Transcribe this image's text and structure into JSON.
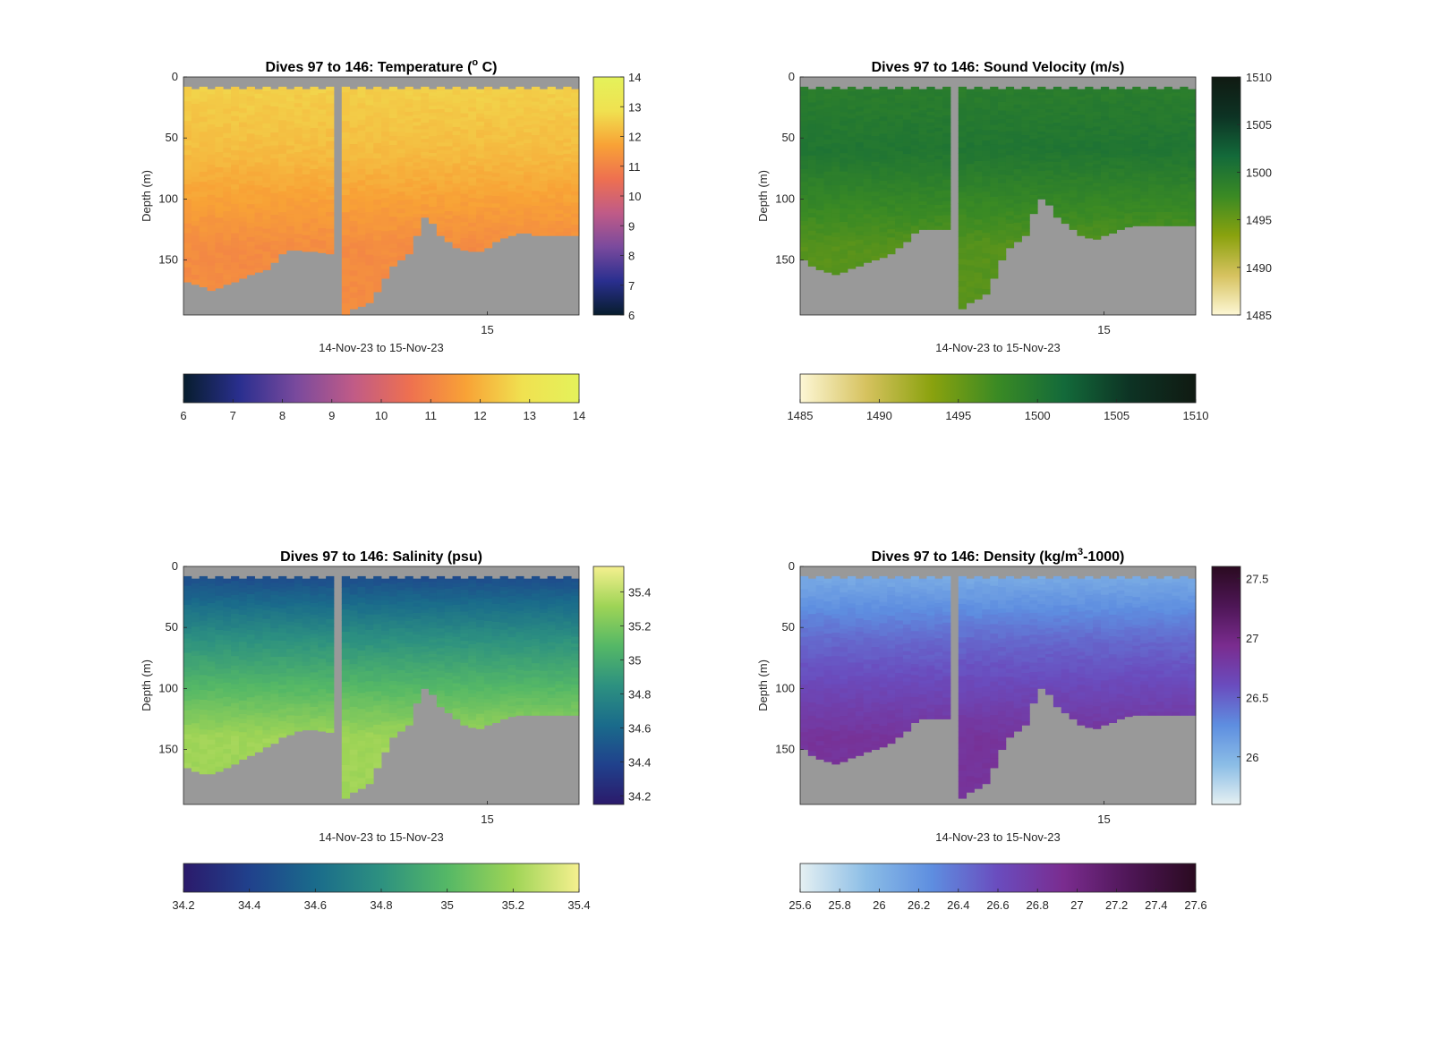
{
  "chart_data": [
    {
      "type": "heatmap",
      "title": "Dives 97 to 146: Temperature (",
      "title_sup": "o",
      "title_tail": " C)",
      "xlabel": "14-Nov-23 to 15-Nov-23",
      "ylabel": "Depth (m)",
      "x_tick_labels": [
        "15"
      ],
      "y_tick_labels": [
        "0",
        "50",
        "100",
        "150"
      ],
      "ylim": [
        0,
        195
      ],
      "colorbar": {
        "range": [
          6,
          14
        ],
        "ticks": [
          "6",
          "7",
          "8",
          "9",
          "10",
          "11",
          "12",
          "13",
          "14"
        ],
        "colors": [
          "#071d2d",
          "#2a2f8f",
          "#7a4a9d",
          "#c05b87",
          "#ee7050",
          "#f8a236",
          "#f0e150",
          "#e4f25b"
        ]
      },
      "hcolorbar_ticks": [
        "6",
        "7",
        "8",
        "9",
        "10",
        "11",
        "12",
        "13",
        "14"
      ],
      "profile": {
        "surface": 12.6,
        "mid": 12.2,
        "deep": 11.2
      },
      "dives": 50,
      "bottom_depth_m": [
        168,
        170,
        172,
        175,
        173,
        170,
        168,
        165,
        162,
        160,
        158,
        152,
        145,
        142,
        142,
        143,
        143,
        144,
        145,
        155,
        195,
        190,
        188,
        185,
        176,
        165,
        155,
        150,
        145,
        130,
        115,
        120,
        130,
        135,
        140,
        142,
        143,
        143,
        140,
        135,
        132,
        130,
        128,
        128,
        130,
        130,
        130,
        130,
        130,
        130
      ],
      "band_color": "#999999",
      "gap_after_dive": 19
    },
    {
      "type": "heatmap",
      "title": "Dives 97 to 146: Sound Velocity (m/s)",
      "xlabel": "14-Nov-23 to 15-Nov-23",
      "ylabel": "Depth (m)",
      "x_tick_labels": [
        "15"
      ],
      "y_tick_labels": [
        "0",
        "50",
        "100",
        "150"
      ],
      "ylim": [
        0,
        195
      ],
      "colorbar": {
        "range": [
          1485,
          1510
        ],
        "ticks": [
          "1485",
          "1490",
          "1495",
          "1500",
          "1505",
          "1510"
        ],
        "colors": [
          "#fdf7d5",
          "#d6c25f",
          "#8aa20e",
          "#3a8a24",
          "#136a3a",
          "#0d3324",
          "#101a12"
        ]
      },
      "hcolorbar_ticks": [
        "1485",
        "1490",
        "1495",
        "1500",
        "1505",
        "1510"
      ],
      "profile": {
        "surface": 1499.0,
        "mid": 1500.2,
        "deep": 1496.0
      },
      "dives": 50,
      "bottom_depth_m": [
        150,
        155,
        158,
        160,
        162,
        160,
        157,
        155,
        152,
        150,
        148,
        145,
        140,
        135,
        128,
        125,
        125,
        125,
        125,
        130,
        190,
        185,
        182,
        178,
        165,
        150,
        140,
        135,
        130,
        112,
        100,
        105,
        115,
        120,
        125,
        130,
        132,
        133,
        130,
        128,
        125,
        123,
        122,
        122,
        122,
        122,
        122,
        122,
        122,
        122
      ],
      "band_color": "#999999",
      "gap_after_dive": 19
    },
    {
      "type": "heatmap",
      "title": "Dives 97 to 146: Salinity (psu)",
      "xlabel": "14-Nov-23 to 15-Nov-23",
      "ylabel": "Depth (m)",
      "x_tick_labels": [
        "15"
      ],
      "y_tick_labels": [
        "0",
        "50",
        "100",
        "150"
      ],
      "ylim": [
        0,
        195
      ],
      "colorbar": {
        "range": [
          34.15,
          35.55
        ],
        "ticks": [
          "34.2",
          "34.4",
          "34.6",
          "34.8",
          "35",
          "35.2",
          "35.4"
        ],
        "colors": [
          "#2b1a6b",
          "#20418c",
          "#1a6b8b",
          "#2d9180",
          "#55b866",
          "#9ed456",
          "#f5f08f"
        ]
      },
      "hcolorbar_ticks": [
        "34.2",
        "34.4",
        "34.6",
        "34.8",
        "35",
        "35.2",
        "35.4"
      ],
      "profile": {
        "surface": 34.38,
        "mid": 34.85,
        "deep": 35.32
      },
      "dives": 50,
      "bottom_depth_m": [
        165,
        168,
        170,
        170,
        168,
        165,
        162,
        158,
        155,
        152,
        148,
        145,
        140,
        138,
        135,
        134,
        134,
        135,
        136,
        148,
        190,
        185,
        182,
        178,
        165,
        152,
        140,
        135,
        130,
        112,
        100,
        105,
        115,
        120,
        125,
        130,
        132,
        133,
        130,
        128,
        125,
        123,
        122,
        122,
        122,
        122,
        122,
        122,
        122,
        122
      ],
      "band_color": "#999999",
      "gap_after_dive": 19
    },
    {
      "type": "heatmap",
      "title": "Dives 97 to 146: Density (kg/m",
      "title_sup": "3",
      "title_tail": "-1000)",
      "xlabel": "14-Nov-23 to 15-Nov-23",
      "ylabel": "Depth (m)",
      "x_tick_labels": [
        "15"
      ],
      "y_tick_labels": [
        "0",
        "50",
        "100",
        "150"
      ],
      "ylim": [
        0,
        195
      ],
      "colorbar": {
        "range": [
          25.6,
          27.6
        ],
        "ticks": [
          "26",
          "26.5",
          "27",
          "27.5"
        ],
        "colors": [
          "#e5f0f2",
          "#8bbde6",
          "#5e8ee0",
          "#6a4cbe",
          "#7a2c8f",
          "#4e1656",
          "#2a0a20"
        ]
      },
      "hcolorbar_ticks": [
        "25.6",
        "25.8",
        "26",
        "26.2",
        "26.4",
        "26.6",
        "26.8",
        "27",
        "27.2",
        "27.4",
        "27.6"
      ],
      "profile": {
        "surface": 26.0,
        "mid": 26.45,
        "deep": 26.85
      },
      "dives": 50,
      "bottom_depth_m": [
        150,
        155,
        158,
        160,
        162,
        160,
        157,
        155,
        152,
        150,
        148,
        145,
        140,
        135,
        128,
        125,
        125,
        125,
        125,
        130,
        190,
        185,
        182,
        178,
        165,
        150,
        140,
        135,
        130,
        112,
        100,
        105,
        115,
        120,
        125,
        130,
        132,
        133,
        130,
        128,
        125,
        123,
        122,
        122,
        122,
        122,
        122,
        122,
        122,
        122
      ],
      "band_color": "#999999",
      "gap_after_dive": 19
    }
  ]
}
